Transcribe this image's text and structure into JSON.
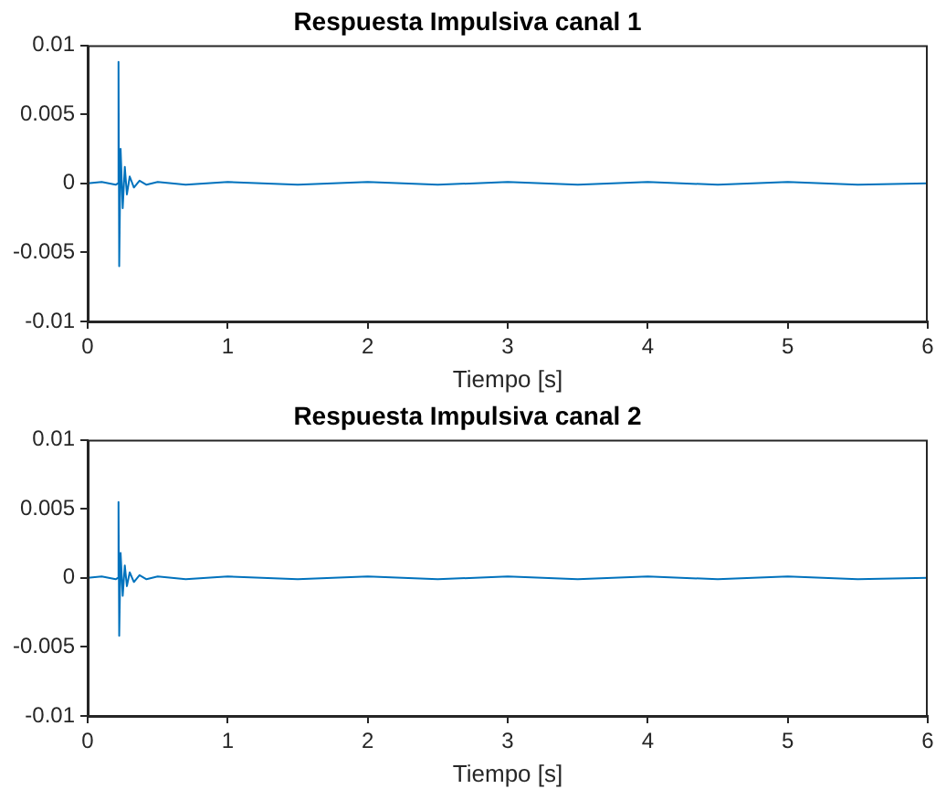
{
  "chart_data": [
    {
      "type": "line",
      "title": "Respuesta Impulsiva canal 1",
      "xlabel": "Tiempo [s]",
      "xlim": [
        0,
        6
      ],
      "xticks": [
        0,
        1,
        2,
        3,
        4,
        5,
        6
      ],
      "ylim": [
        -0.01,
        0.01
      ],
      "yticks": [
        -0.01,
        -0.005,
        0,
        0.005,
        0.01
      ],
      "grid": false,
      "legend": false,
      "marker": "none",
      "line_style": "solid",
      "series": [
        {
          "color": "#0072bd",
          "x": [
            0,
            0.1,
            0.2,
            0.215,
            0.22,
            0.225,
            0.235,
            0.25,
            0.265,
            0.28,
            0.3,
            0.33,
            0.37,
            0.42,
            0.5,
            0.7,
            1,
            1.5,
            2,
            2.5,
            3,
            3.5,
            4,
            4.5,
            5,
            5.5,
            6
          ],
          "values": [
            0,
            0.0001,
            -0.0001,
            0,
            0.0088,
            -0.006,
            0.0025,
            -0.0018,
            0.0012,
            -0.0008,
            0.0005,
            -0.0003,
            0.0002,
            -0.0001,
            0.0001,
            -0.0001,
            0.0001,
            -0.0001,
            0.0001,
            -0.0001,
            0.0001,
            -0.0001,
            0.0001,
            -0.0001,
            0.0001,
            -0.0001,
            0
          ]
        }
      ]
    },
    {
      "type": "line",
      "title": "Respuesta Impulsiva canal 2",
      "xlabel": "Tiempo [s]",
      "xlim": [
        0,
        6
      ],
      "xticks": [
        0,
        1,
        2,
        3,
        4,
        5,
        6
      ],
      "ylim": [
        -0.01,
        0.01
      ],
      "yticks": [
        -0.01,
        -0.005,
        0,
        0.005,
        0.01
      ],
      "grid": false,
      "legend": false,
      "marker": "none",
      "line_style": "solid",
      "series": [
        {
          "color": "#0072bd",
          "x": [
            0,
            0.1,
            0.2,
            0.215,
            0.22,
            0.225,
            0.235,
            0.25,
            0.265,
            0.28,
            0.3,
            0.33,
            0.37,
            0.42,
            0.5,
            0.7,
            1,
            1.5,
            2,
            2.5,
            3,
            3.5,
            4,
            4.5,
            5,
            5.5,
            6
          ],
          "values": [
            0,
            0.0001,
            -0.0001,
            0,
            0.0055,
            -0.0042,
            0.0018,
            -0.0013,
            0.0009,
            -0.0006,
            0.0004,
            -0.0003,
            0.0002,
            -0.0001,
            0.0001,
            -0.0001,
            0.0001,
            -0.0001,
            0.0001,
            -0.0001,
            0.0001,
            -0.0001,
            0.0001,
            -0.0001,
            0.0001,
            -0.0001,
            0
          ]
        }
      ]
    }
  ]
}
